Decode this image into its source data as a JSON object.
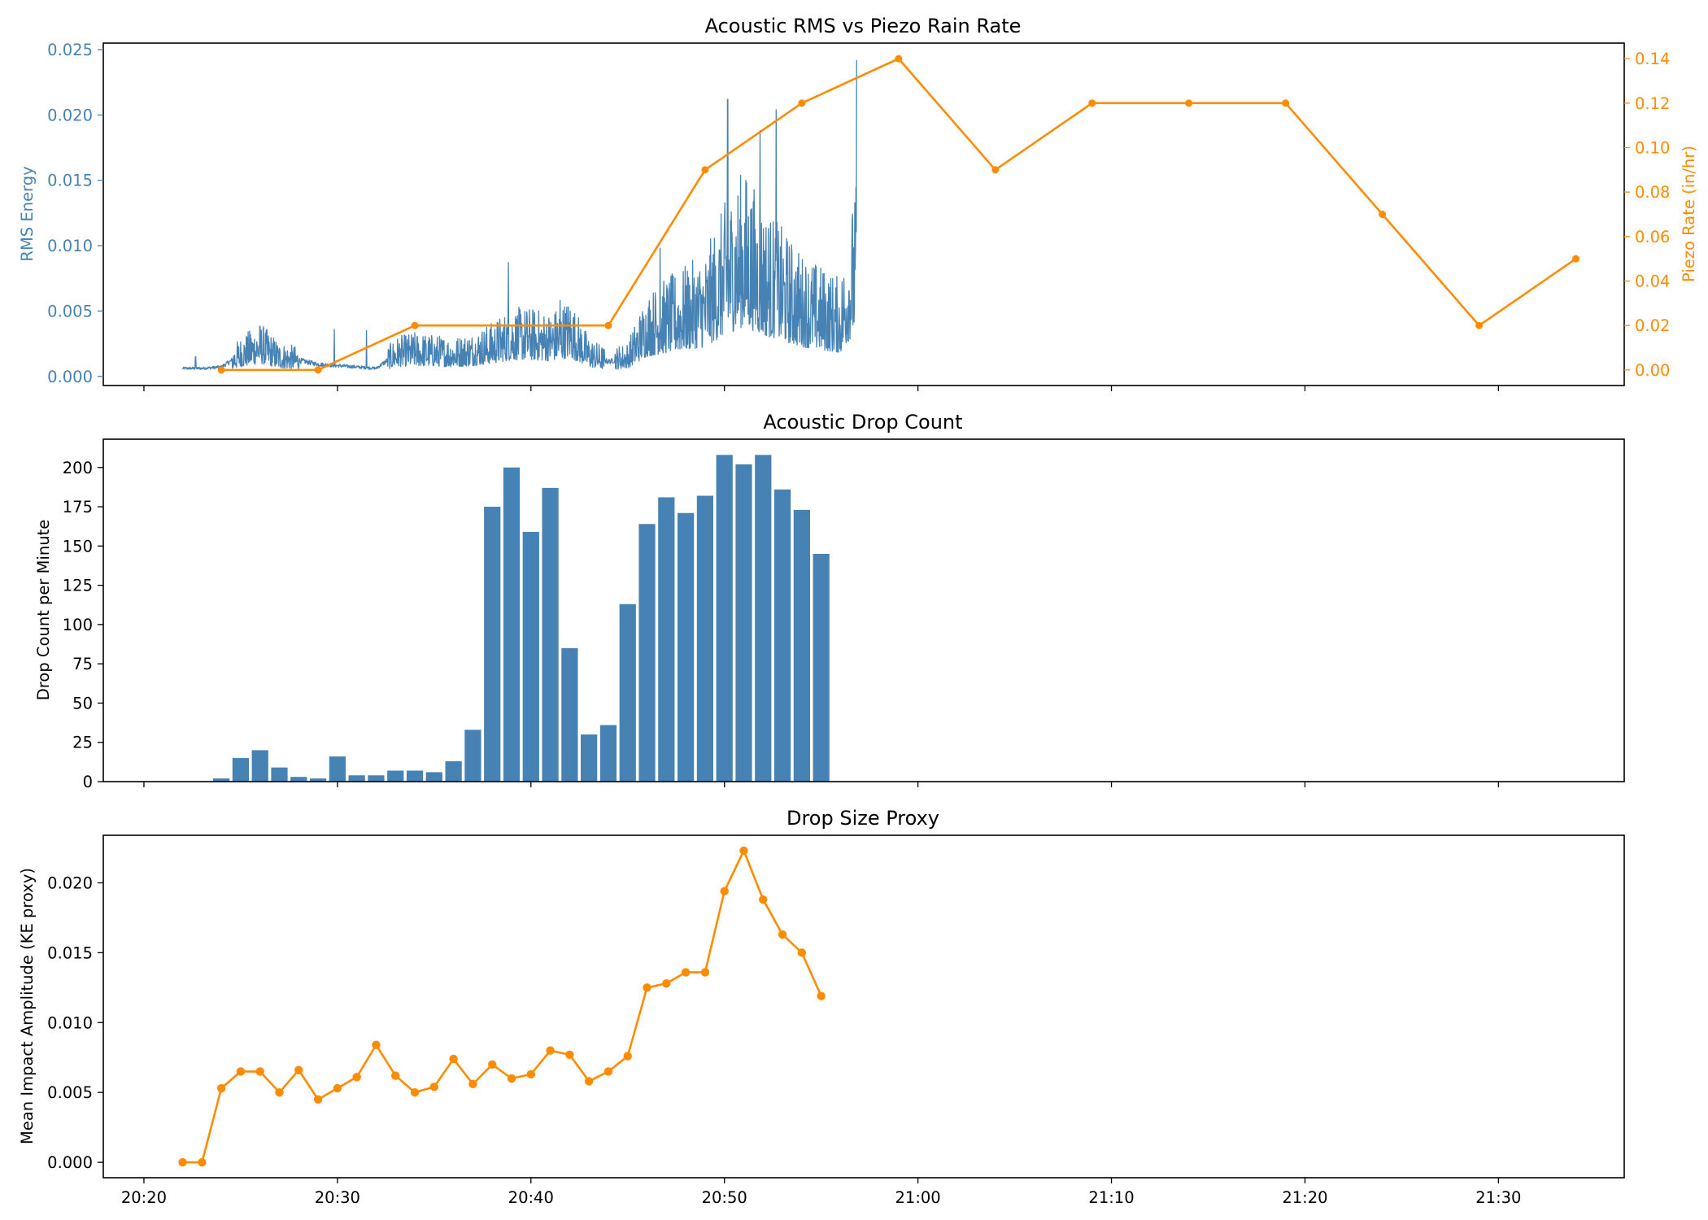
{
  "colors": {
    "blue": "#4682b4",
    "orange": "#ff8c00",
    "black": "#000000"
  },
  "x_axis": {
    "tick_labels": [
      "20:20",
      "20:30",
      "20:40",
      "20:50",
      "21:00",
      "21:10",
      "21:20",
      "21:30"
    ],
    "tick_minutes": [
      0,
      10,
      20,
      30,
      40,
      50,
      60,
      70
    ],
    "range_minutes": [
      -2.1,
      76.5
    ]
  },
  "chart_data": [
    {
      "type": "line",
      "title": "Acoustic RMS vs Piezo Rain Rate",
      "ylabel": "RMS Energy",
      "ylim": [
        -0.0007,
        0.0255
      ],
      "yticks": [
        0,
        0.005,
        0.01,
        0.015,
        0.02,
        0.025
      ],
      "ytick_labels": [
        "0.000",
        "0.005",
        "0.010",
        "0.015",
        "0.020",
        "0.025"
      ],
      "ylabel_right": "Piezo Rate (in/hr)",
      "ylim_right": [
        -0.007,
        0.147
      ],
      "yticks_right": [
        0,
        0.02,
        0.04,
        0.06,
        0.08,
        0.1,
        0.12,
        0.14
      ],
      "ytick_labels_right": [
        "0.00",
        "0.02",
        "0.04",
        "0.06",
        "0.08",
        "0.10",
        "0.12",
        "0.14"
      ],
      "series": [
        {
          "axis": "left",
          "color": "#4682b4",
          "x_start": "20:22",
          "x_end": "20:56:50",
          "envelope": {
            "x": [
              "20:22",
              "20:23",
              "20:24",
              "20:25",
              "20:26",
              "20:27",
              "20:28",
              "20:29",
              "20:30",
              "20:31",
              "20:32",
              "20:33",
              "20:34",
              "20:35",
              "20:36",
              "20:37",
              "20:38",
              "20:39",
              "20:40",
              "20:41",
              "20:42",
              "20:43",
              "20:44",
              "20:45",
              "20:46",
              "20:47",
              "20:48",
              "20:49",
              "20:50",
              "20:51",
              "20:52",
              "20:53",
              "20:54",
              "20:55",
              "20:56",
              "20:56:50"
            ],
            "y": [
              0.0006,
              0.0006,
              0.0007,
              0.0016,
              0.0022,
              0.0014,
              0.0012,
              0.0009,
              0.0008,
              0.0007,
              0.0006,
              0.0016,
              0.0018,
              0.0017,
              0.0016,
              0.0018,
              0.0022,
              0.0028,
              0.0028,
              0.0026,
              0.0032,
              0.0016,
              0.0011,
              0.0014,
              0.0034,
              0.004,
              0.0045,
              0.005,
              0.007,
              0.0085,
              0.007,
              0.006,
              0.005,
              0.0045,
              0.004,
              0.008
            ]
          },
          "peaks": {
            "x": [
              "20:22:40",
              "20:25:30",
              "20:29:50",
              "20:31:30",
              "20:38:50",
              "20:41:30",
              "20:46:40",
              "20:50:10",
              "20:51:50",
              "20:52:40",
              "20:56:50"
            ],
            "y": [
              0.0015,
              0.0032,
              0.0036,
              0.0035,
              0.0087,
              0.0058,
              0.0098,
              0.0212,
              0.0188,
              0.0204,
              0.0242
            ]
          }
        },
        {
          "name": "Piezo Rate",
          "axis": "right",
          "color": "#ff8c00",
          "x": [
            "20:24",
            "20:29",
            "20:34",
            "20:44",
            "20:49",
            "20:54",
            "20:59",
            "21:04",
            "21:09",
            "21:14",
            "21:19",
            "21:24",
            "21:29",
            "21:34"
          ],
          "values": [
            0.0,
            0.0,
            0.02,
            0.02,
            0.09,
            0.12,
            0.14,
            0.09,
            0.12,
            0.12,
            0.12,
            0.07,
            0.02,
            0.05
          ]
        }
      ]
    },
    {
      "type": "bar",
      "title": "Acoustic Drop Count",
      "ylabel": "Drop Count per Minute",
      "ylim": [
        0,
        218
      ],
      "yticks": [
        0,
        25,
        50,
        75,
        100,
        125,
        150,
        175,
        200
      ],
      "ytick_labels": [
        "0",
        "25",
        "50",
        "75",
        "100",
        "125",
        "150",
        "175",
        "200"
      ],
      "color": "#4682b4",
      "x": [
        "20:22",
        "20:23",
        "20:24",
        "20:25",
        "20:26",
        "20:27",
        "20:28",
        "20:29",
        "20:30",
        "20:31",
        "20:32",
        "20:33",
        "20:34",
        "20:35",
        "20:36",
        "20:37",
        "20:38",
        "20:39",
        "20:40",
        "20:41",
        "20:42",
        "20:43",
        "20:44",
        "20:45",
        "20:46",
        "20:47",
        "20:48",
        "20:49",
        "20:50",
        "20:51",
        "20:52",
        "20:53",
        "20:54",
        "20:55"
      ],
      "values": [
        0,
        0,
        2,
        15,
        20,
        9,
        3,
        2,
        16,
        4,
        4,
        7,
        7,
        6,
        13,
        33,
        175,
        200,
        159,
        187,
        85,
        30,
        36,
        113,
        164,
        181,
        171,
        182,
        208,
        202,
        208,
        186,
        173,
        145
      ]
    },
    {
      "type": "line",
      "title": "Drop Size Proxy",
      "ylabel": "Mean Impact Amplitude (KE proxy)",
      "ylim": [
        -0.0011,
        0.0234
      ],
      "yticks": [
        0,
        0.005,
        0.01,
        0.015,
        0.02
      ],
      "ytick_labels": [
        "0.000",
        "0.005",
        "0.010",
        "0.015",
        "0.020"
      ],
      "color": "#ff8c00",
      "x": [
        "20:22",
        "20:23",
        "20:24",
        "20:25",
        "20:26",
        "20:27",
        "20:28",
        "20:29",
        "20:30",
        "20:31",
        "20:32",
        "20:33",
        "20:34",
        "20:35",
        "20:36",
        "20:37",
        "20:38",
        "20:39",
        "20:40",
        "20:41",
        "20:42",
        "20:43",
        "20:44",
        "20:45",
        "20:46",
        "20:47",
        "20:48",
        "20:49",
        "20:50",
        "20:51",
        "20:52",
        "20:53",
        "20:54",
        "20:55"
      ],
      "values": [
        0.0,
        0.0,
        0.0053,
        0.0065,
        0.0065,
        0.005,
        0.0066,
        0.0045,
        0.0053,
        0.0061,
        0.0084,
        0.0062,
        0.005,
        0.0054,
        0.0074,
        0.0056,
        0.007,
        0.006,
        0.0063,
        0.008,
        0.0077,
        0.0058,
        0.0065,
        0.0076,
        0.0125,
        0.0128,
        0.0136,
        0.0136,
        0.0194,
        0.0223,
        0.0188,
        0.0163,
        0.015,
        0.0119
      ]
    }
  ]
}
